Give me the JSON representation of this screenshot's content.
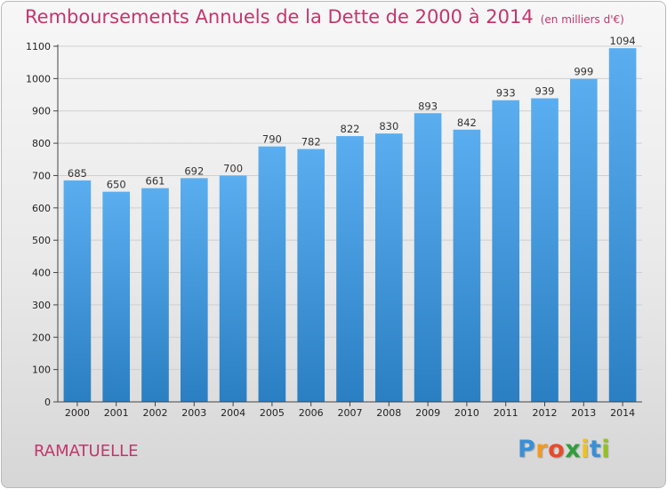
{
  "header": {
    "title": "Remboursements Annuels de la Dette de 2000 à 2014",
    "unit": "(en milliers d'€)"
  },
  "footer": {
    "commune": "RAMATUELLE",
    "logo_letters": [
      "P",
      "r",
      "o",
      "x",
      "i",
      "t",
      "i"
    ]
  },
  "colors": {
    "title": "#c2366c",
    "bar_top": "#5aaef0",
    "bar_bottom": "#2a7fc2",
    "logo": [
      "#3a8fd6",
      "#f39a1e",
      "#e94a2a",
      "#2f9e3a",
      "#f0c21a",
      "#3a8fd6",
      "#94c11f"
    ]
  },
  "chart_data": {
    "type": "bar",
    "title": "Remboursements Annuels de la Dette de 2000 à 2014",
    "ylabel": "en milliers d'€",
    "xlabel": "",
    "categories": [
      "2000",
      "2001",
      "2002",
      "2003",
      "2004",
      "2005",
      "2006",
      "2007",
      "2008",
      "2009",
      "2010",
      "2011",
      "2012",
      "2013",
      "2014"
    ],
    "values": [
      685,
      650,
      661,
      692,
      700,
      790,
      782,
      822,
      830,
      893,
      842,
      933,
      939,
      999,
      1094
    ],
    "ylim": [
      0,
      1100
    ],
    "yticks": [
      "0",
      "100",
      "200",
      "300",
      "400",
      "500",
      "600",
      "700",
      "800",
      "900",
      "1000",
      "1100"
    ],
    "ytick_values": [
      0,
      100,
      200,
      300,
      400,
      500,
      600,
      700,
      800,
      900,
      1000,
      1100
    ],
    "grid": true
  }
}
